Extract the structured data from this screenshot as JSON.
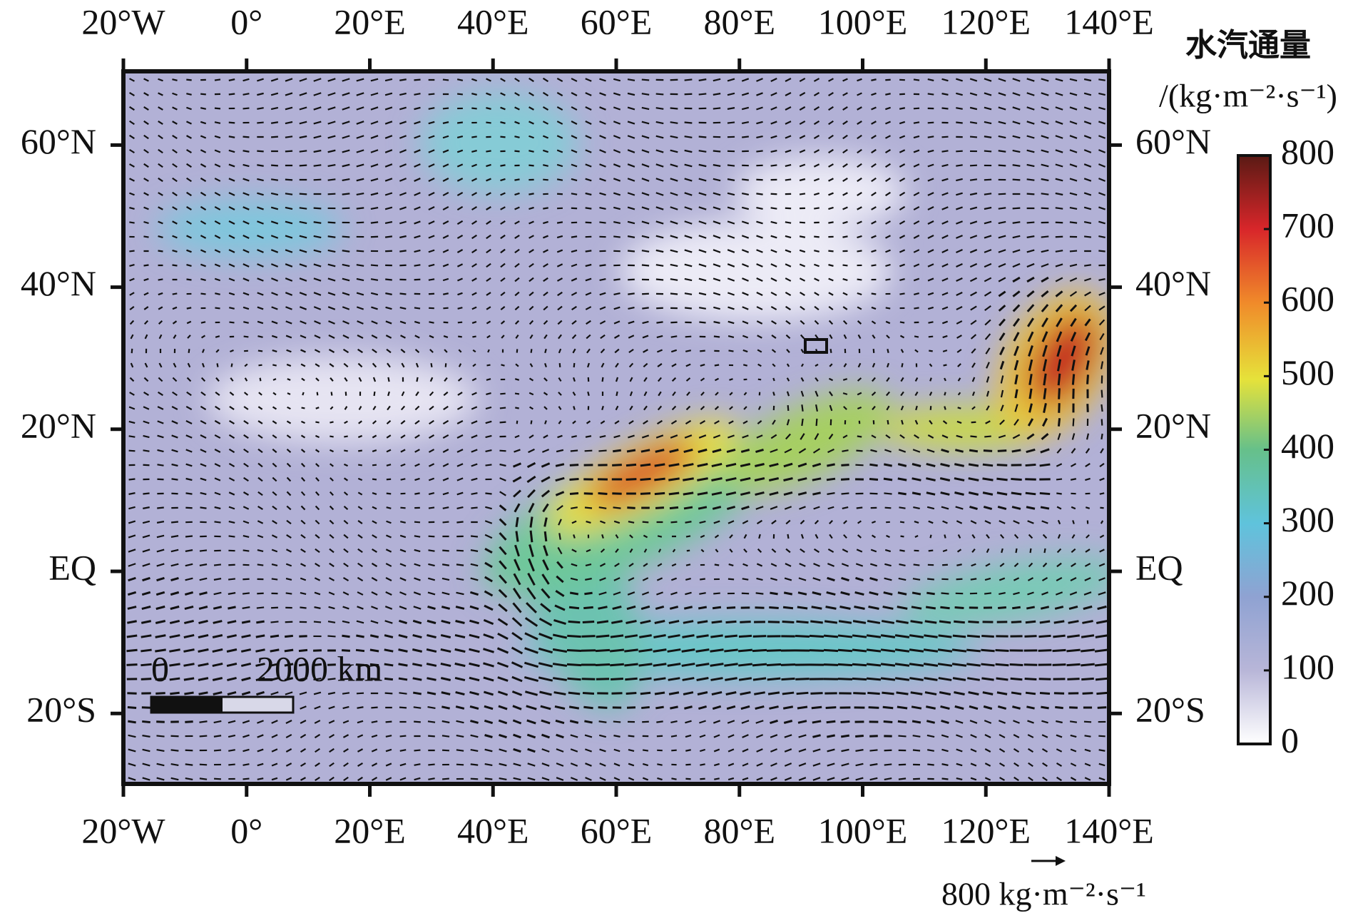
{
  "map": {
    "lon_ticks": [
      {
        "value": -20,
        "label": "20°W"
      },
      {
        "value": 0,
        "label": "0°"
      },
      {
        "value": 20,
        "label": "20°E"
      },
      {
        "value": 40,
        "label": "40°E"
      },
      {
        "value": 60,
        "label": "60°E"
      },
      {
        "value": 80,
        "label": "80°E"
      },
      {
        "value": 100,
        "label": "100°E"
      },
      {
        "value": 120,
        "label": "120°E"
      },
      {
        "value": 140,
        "label": "140°E"
      }
    ],
    "lat_ticks": [
      {
        "value": 60,
        "label": "60°N"
      },
      {
        "value": 40,
        "label": "40°N"
      },
      {
        "value": 20,
        "label": "20°N"
      },
      {
        "value": 0,
        "label": "EQ"
      },
      {
        "value": -20,
        "label": "20°S"
      }
    ]
  },
  "colorbar": {
    "title": "水汽通量",
    "unit": "/(kg·m⁻²·s⁻¹)",
    "ticks": [
      0,
      100,
      200,
      300,
      400,
      500,
      600,
      700,
      800
    ]
  },
  "scale_bar": {
    "start": "0",
    "end": "2000 km"
  },
  "reference_vector": "800 kg·m⁻²·s⁻¹"
}
